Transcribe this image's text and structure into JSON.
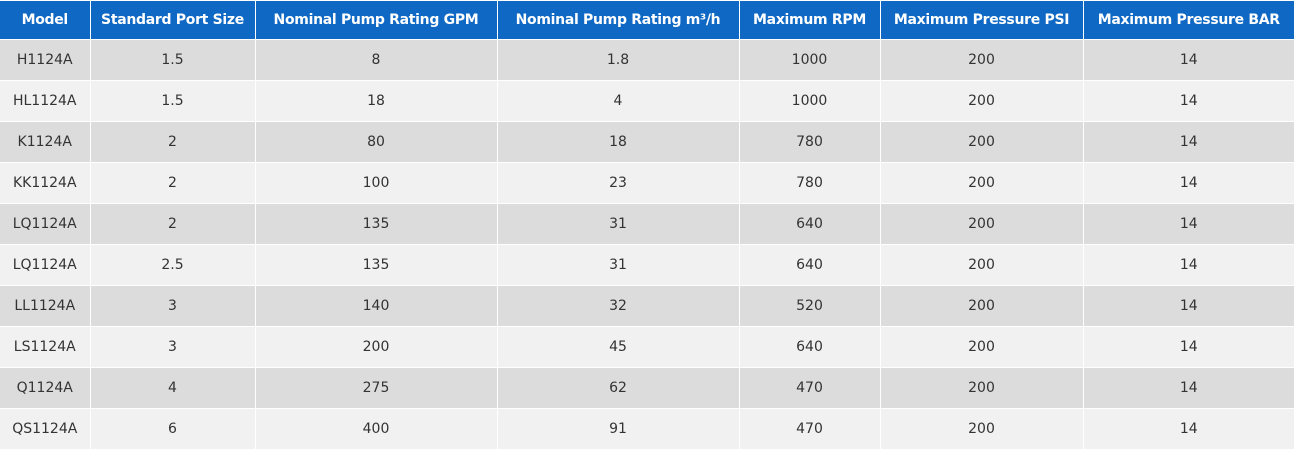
{
  "table": {
    "headers": [
      "Model",
      "Standard Port Size",
      "Nominal Pump Rating GPM",
      "Nominal Pump Rating m³/h",
      "Maximum RPM",
      "Maximum Pressure PSI",
      "Maximum Pressure BAR"
    ],
    "rows": [
      [
        "H1124A",
        "1.5",
        "8",
        "1.8",
        "1000",
        "200",
        "14"
      ],
      [
        "HL1124A",
        "1.5",
        "18",
        "4",
        "1000",
        "200",
        "14"
      ],
      [
        "K1124A",
        "2",
        "80",
        "18",
        "780",
        "200",
        "14"
      ],
      [
        "KK1124A",
        "2",
        "100",
        "23",
        "780",
        "200",
        "14"
      ],
      [
        "LQ1124A",
        "2",
        "135",
        "31",
        "640",
        "200",
        "14"
      ],
      [
        "LQ1124A",
        "2.5",
        "135",
        "31",
        "640",
        "200",
        "14"
      ],
      [
        "LL1124A",
        "3",
        "140",
        "32",
        "520",
        "200",
        "14"
      ],
      [
        "LS1124A",
        "3",
        "200",
        "45",
        "640",
        "200",
        "14"
      ],
      [
        "Q1124A",
        "4",
        "275",
        "62",
        "470",
        "200",
        "14"
      ],
      [
        "QS1124A",
        "6",
        "400",
        "91",
        "470",
        "200",
        "14"
      ]
    ]
  }
}
